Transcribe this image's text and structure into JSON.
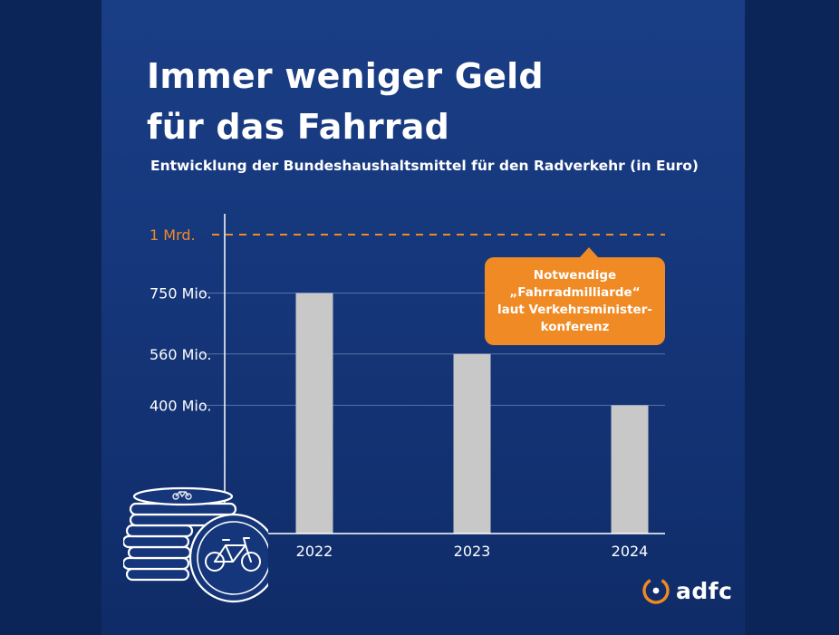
{
  "title_lines": [
    "Immer weniger Geld",
    "für das Fahrrad"
  ],
  "subtitle": "Entwicklung der Bundeshaushaltsmittel für den Radverkehr (in Euro)",
  "colors": {
    "background": "#15367a",
    "bar": "#c8c8c8",
    "accent": "#f08a24",
    "text": "#ffffff"
  },
  "chart_data": {
    "type": "bar",
    "title": "Immer weniger Geld für das Fahrrad",
    "subtitle": "Entwicklung der Bundeshaushaltsmittel für den Radverkehr (in Euro)",
    "categories": [
      "2022",
      "2023",
      "2024"
    ],
    "values": [
      750,
      560,
      400
    ],
    "unit": "Mio. Euro",
    "ylim": [
      0,
      1000
    ],
    "y_ticks": [
      {
        "value": 400,
        "label": "400 Mio."
      },
      {
        "value": 560,
        "label": "560 Mio."
      },
      {
        "value": 750,
        "label": "750 Mio."
      }
    ],
    "reference_line": {
      "value": 1000,
      "label": "1 Mrd.",
      "style": "dashed"
    },
    "grid": true,
    "xlabel": "",
    "ylabel": ""
  },
  "callout_lines": [
    "Notwendige",
    "„Fahrradmilliarde“",
    "laut Verkehrsminister-",
    "konferenz"
  ],
  "logo": {
    "text": "adfc"
  },
  "illustration": {
    "name": "coin-stack-with-bicycle-icon"
  }
}
